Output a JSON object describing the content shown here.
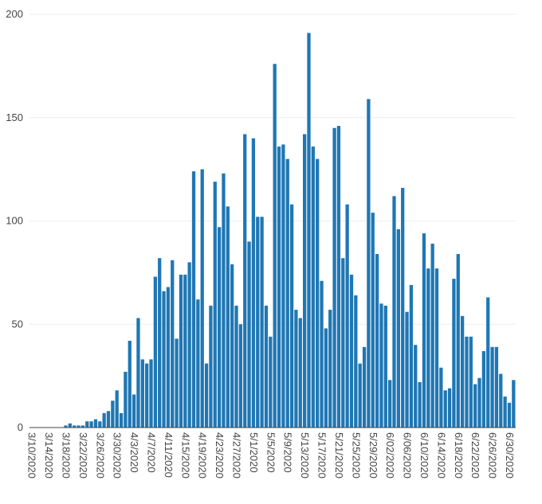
{
  "chart_data": {
    "type": "bar",
    "title": "",
    "xlabel": "",
    "ylabel": "",
    "ylim": [
      0,
      200
    ],
    "yticks": [
      0,
      50,
      100,
      150,
      200
    ],
    "grid": true,
    "bar_color": "#1f77b4",
    "x_tick_labels": [
      "3/10/2020",
      "3/14/2020",
      "3/18/2020",
      "3/22/2020",
      "3/26/2020",
      "3/30/2020",
      "4/3/2020",
      "4/7/2020",
      "4/11/2020",
      "4/15/2020",
      "4/19/2020",
      "4/23/2020",
      "4/27/2020",
      "5/1/2020",
      "5/5/2020",
      "5/9/2020",
      "5/13/2020",
      "5/17/2020",
      "5/21/2020",
      "5/25/2020",
      "5/29/2020",
      "6/02/2020",
      "6/06/2020",
      "6/10/2020",
      "6/14/2020",
      "6/18/2020",
      "6/22/2020",
      "6/26/2020",
      "6/30/2020"
    ],
    "start_date": "3/10/2020",
    "values": [
      0,
      0,
      0,
      0,
      0,
      0,
      0,
      0,
      1,
      2,
      1,
      1,
      1,
      3,
      3,
      4,
      3,
      7,
      8,
      13,
      18,
      7,
      27,
      42,
      16,
      53,
      33,
      31,
      33,
      73,
      82,
      66,
      68,
      81,
      43,
      74,
      74,
      80,
      124,
      62,
      125,
      31,
      59,
      119,
      97,
      123,
      107,
      79,
      59,
      50,
      142,
      90,
      140,
      102,
      102,
      59,
      44,
      176,
      136,
      137,
      130,
      108,
      57,
      53,
      142,
      191,
      136,
      130,
      71,
      48,
      57,
      145,
      146,
      82,
      108,
      74,
      64,
      31,
      39,
      159,
      104,
      84,
      60,
      59,
      23,
      112,
      96,
      116,
      56,
      69,
      40,
      22,
      94,
      77,
      89,
      77,
      29,
      18,
      19,
      72,
      84,
      54,
      44,
      44,
      21,
      24,
      37,
      63,
      39,
      39,
      26,
      15,
      12,
      23
    ]
  }
}
